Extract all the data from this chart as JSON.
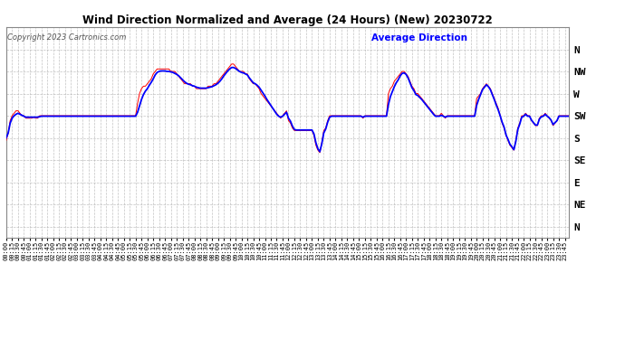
{
  "title": "Wind Direction Normalized and Average (24 Hours) (New) 20230722",
  "copyright": "Copyright 2023 Cartronics.com",
  "legend_label": "Average Direction",
  "background_color": "#ffffff",
  "plot_bg_color": "#ffffff",
  "red_line_color": "#ff0000",
  "blue_line_color": "#0000ff",
  "title_color": "#000000",
  "copyright_color": "#555555",
  "copyright_fontstyle": "italic",
  "legend_color": "#0000ff",
  "ytick_labels": [
    "N",
    "NW",
    "W",
    "SW",
    "S",
    "SE",
    "E",
    "NE",
    "N"
  ],
  "ytick_values": [
    360,
    315,
    270,
    225,
    180,
    135,
    90,
    45,
    0
  ],
  "ylim": [
    -22,
    405
  ],
  "grid_color": "#aaaaaa",
  "grid_style": "--",
  "red_data": [
    175,
    190,
    215,
    225,
    230,
    235,
    235,
    230,
    225,
    225,
    220,
    220,
    220,
    220,
    222,
    220,
    220,
    225,
    225,
    225,
    225,
    225,
    225,
    225,
    225,
    225,
    225,
    225,
    225,
    225,
    225,
    225,
    225,
    225,
    225,
    225,
    225,
    225,
    225,
    225,
    225,
    225,
    225,
    225,
    225,
    225,
    225,
    225,
    225,
    225,
    225,
    225,
    225,
    225,
    225,
    225,
    225,
    225,
    225,
    225,
    225,
    225,
    225,
    225,
    225,
    225,
    225,
    250,
    270,
    280,
    285,
    285,
    290,
    295,
    300,
    310,
    315,
    320,
    320,
    320,
    320,
    320,
    320,
    320,
    315,
    315,
    315,
    310,
    305,
    300,
    295,
    290,
    290,
    290,
    290,
    285,
    285,
    280,
    280,
    280,
    280,
    280,
    280,
    285,
    285,
    285,
    290,
    290,
    295,
    300,
    305,
    310,
    315,
    320,
    325,
    330,
    330,
    325,
    320,
    315,
    315,
    315,
    310,
    310,
    300,
    295,
    290,
    290,
    285,
    280,
    270,
    265,
    260,
    255,
    250,
    245,
    240,
    235,
    230,
    225,
    220,
    225,
    230,
    235,
    215,
    210,
    200,
    195,
    195,
    195,
    195,
    195,
    195,
    195,
    195,
    195,
    195,
    185,
    165,
    155,
    150,
    170,
    195,
    200,
    215,
    225,
    225,
    225,
    225,
    225,
    225,
    225,
    225,
    225,
    225,
    225,
    225,
    225,
    225,
    225,
    225,
    225,
    220,
    225,
    225,
    225,
    225,
    225,
    225,
    225,
    225,
    225,
    225,
    225,
    225,
    270,
    280,
    285,
    295,
    300,
    305,
    310,
    315,
    315,
    310,
    305,
    295,
    285,
    280,
    270,
    270,
    265,
    260,
    255,
    250,
    245,
    240,
    235,
    230,
    225,
    225,
    225,
    230,
    225,
    220,
    225,
    225,
    225,
    225,
    225,
    225,
    225,
    225,
    225,
    225,
    225,
    225,
    225,
    225,
    225,
    260,
    265,
    270,
    280,
    285,
    290,
    285,
    280,
    270,
    260,
    250,
    240,
    225,
    210,
    200,
    185,
    175,
    165,
    160,
    155,
    175,
    200,
    210,
    225,
    225,
    230,
    225,
    225,
    215,
    210,
    205,
    205,
    220,
    225,
    225,
    230,
    225,
    220,
    215,
    205,
    210,
    215,
    225,
    225,
    225,
    225,
    225,
    225
  ],
  "blue_data": [
    180,
    190,
    210,
    220,
    225,
    228,
    230,
    228,
    226,
    224,
    222,
    222,
    222,
    222,
    222,
    222,
    222,
    223,
    224,
    224,
    224,
    224,
    224,
    224,
    224,
    224,
    224,
    224,
    224,
    224,
    224,
    224,
    224,
    224,
    224,
    224,
    224,
    224,
    224,
    224,
    224,
    224,
    224,
    224,
    224,
    224,
    224,
    224,
    224,
    224,
    224,
    224,
    224,
    224,
    224,
    224,
    224,
    224,
    224,
    224,
    224,
    224,
    224,
    224,
    224,
    224,
    224,
    232,
    245,
    258,
    268,
    275,
    280,
    287,
    293,
    300,
    308,
    313,
    315,
    316,
    316,
    316,
    315,
    315,
    314,
    313,
    311,
    309,
    306,
    302,
    298,
    294,
    291,
    289,
    288,
    286,
    285,
    283,
    282,
    281,
    281,
    281,
    281,
    282,
    283,
    284,
    286,
    288,
    291,
    295,
    300,
    306,
    311,
    316,
    320,
    323,
    323,
    321,
    318,
    315,
    313,
    312,
    310,
    308,
    302,
    297,
    292,
    290,
    287,
    283,
    277,
    271,
    265,
    258,
    252,
    246,
    240,
    234,
    228,
    224,
    222,
    224,
    228,
    232,
    220,
    214,
    204,
    197,
    196,
    196,
    196,
    196,
    196,
    196,
    196,
    196,
    196,
    188,
    170,
    158,
    152,
    168,
    190,
    198,
    212,
    222,
    224,
    224,
    224,
    224,
    224,
    224,
    224,
    224,
    224,
    224,
    224,
    224,
    224,
    224,
    224,
    224,
    222,
    224,
    224,
    224,
    224,
    224,
    224,
    224,
    224,
    224,
    224,
    224,
    224,
    248,
    264,
    274,
    284,
    292,
    298,
    306,
    311,
    312,
    309,
    302,
    292,
    282,
    276,
    268,
    266,
    262,
    258,
    253,
    248,
    243,
    238,
    233,
    228,
    224,
    224,
    224,
    226,
    224,
    222,
    224,
    224,
    224,
    224,
    224,
    224,
    224,
    224,
    224,
    224,
    224,
    224,
    224,
    224,
    224,
    246,
    258,
    268,
    278,
    283,
    288,
    284,
    278,
    268,
    258,
    247,
    237,
    225,
    212,
    202,
    186,
    177,
    167,
    162,
    156,
    173,
    197,
    208,
    222,
    224,
    228,
    224,
    224,
    216,
    211,
    206,
    206,
    218,
    223,
    224,
    228,
    224,
    221,
    216,
    207,
    211,
    215,
    224,
    224,
    224,
    224,
    224,
    224
  ]
}
